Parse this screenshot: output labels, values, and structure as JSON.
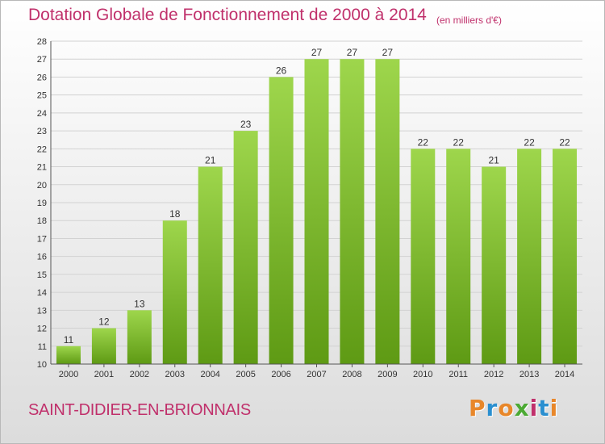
{
  "header": {
    "title": "Dotation Globale de Fonctionnement de 2000 à 2014",
    "unit": "(en milliers d'€)"
  },
  "footer": {
    "commune": "SAINT-DIDIER-EN-BRIONNAIS",
    "logo_text": "Proxiti"
  },
  "colors": {
    "title": "#c0306b",
    "bar_light": "#9ed64c",
    "bar_dark": "#5e9a14",
    "logo_letters": [
      "#e8872a",
      "#2a8fd0",
      "#e8872a",
      "#4caa34",
      "#c0306b",
      "#2a8fd0",
      "#e8872a"
    ]
  },
  "chart_data": {
    "type": "bar",
    "title": "Dotation Globale de Fonctionnement de 2000 à 2014",
    "subtitle": "(en milliers d'€)",
    "categories": [
      "2000",
      "2001",
      "2002",
      "2003",
      "2004",
      "2005",
      "2006",
      "2007",
      "2008",
      "2009",
      "2010",
      "2011",
      "2012",
      "2013",
      "2014"
    ],
    "values": [
      11,
      12,
      13,
      18,
      21,
      23,
      26,
      27,
      27,
      27,
      22,
      22,
      21,
      22,
      22
    ],
    "ylim": [
      10,
      28
    ],
    "yticks": [
      10,
      11,
      12,
      13,
      14,
      15,
      16,
      17,
      18,
      19,
      20,
      21,
      22,
      23,
      24,
      25,
      26,
      27,
      28
    ],
    "grid": true,
    "legend": "none"
  }
}
